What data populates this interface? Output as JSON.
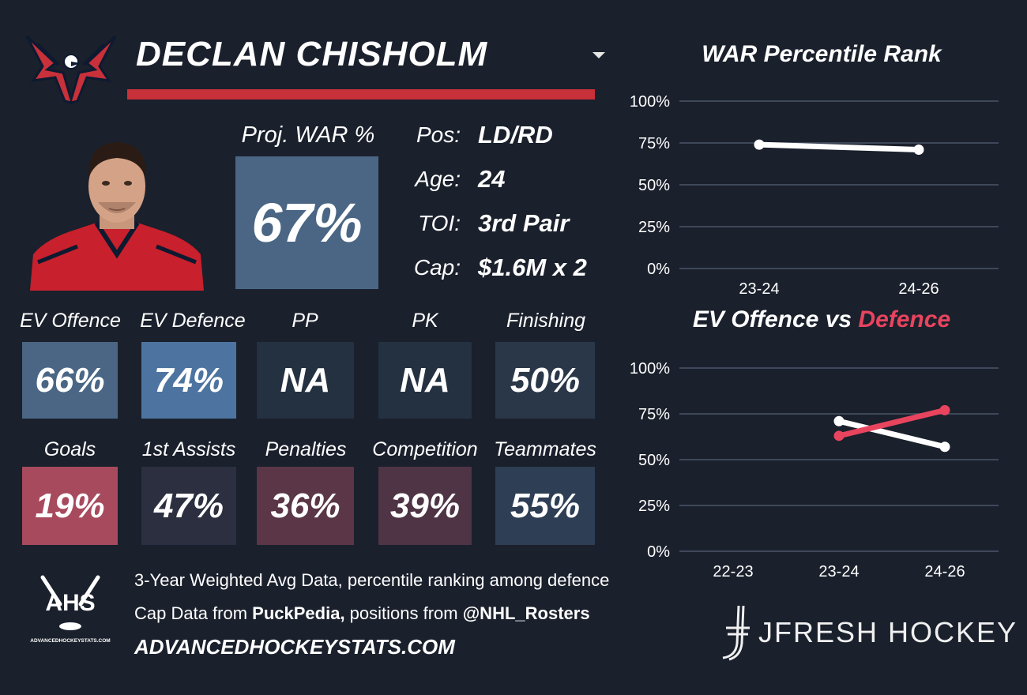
{
  "header": {
    "player_name": "DECLAN CHISHOLM"
  },
  "proj_war": {
    "label": "Proj. WAR %",
    "value": "67%",
    "color": "#4a6684"
  },
  "info": {
    "pos_label": "Pos:",
    "pos_value": "LD/RD",
    "age_label": "Age:",
    "age_value": "24",
    "toi_label": "TOI:",
    "toi_value": "3rd Pair",
    "cap_label": "Cap:",
    "cap_value": "$1.6M x 2"
  },
  "stats_row1": [
    {
      "label": "EV Offence",
      "value": "66%",
      "color": "#4a6684"
    },
    {
      "label": "EV Defence",
      "value": "74%",
      "color": "#4d74a0"
    },
    {
      "label": "PP",
      "value": "NA",
      "color": "#243140"
    },
    {
      "label": "PK",
      "value": "NA",
      "color": "#243140"
    },
    {
      "label": "Finishing",
      "value": "50%",
      "color": "#2a3748"
    }
  ],
  "stats_row2": [
    {
      "label": "Goals",
      "value": "19%",
      "color": "#a84a5e"
    },
    {
      "label": "1st Assists",
      "value": "47%",
      "color": "#2b2f40"
    },
    {
      "label": "Penalties",
      "value": "36%",
      "color": "#5a3646"
    },
    {
      "label": "Competition",
      "value": "39%",
      "color": "#4e3444"
    },
    {
      "label": "Teammates",
      "value": "55%",
      "color": "#2e3e54"
    }
  ],
  "chart_data": [
    {
      "type": "line",
      "title": "WAR Percentile Rank",
      "categories": [
        "23-24",
        "24-26"
      ],
      "yticks": [
        "100%",
        "75%",
        "50%",
        "25%",
        "0%"
      ],
      "ylim": [
        0,
        100
      ],
      "series": [
        {
          "values": [
            74,
            71
          ],
          "color": "#ffffff"
        }
      ]
    },
    {
      "type": "line",
      "title_part1": "EV Offence vs ",
      "title_part2": "Defence",
      "categories": [
        "22-23",
        "23-24",
        "24-26"
      ],
      "yticks": [
        "100%",
        "75%",
        "50%",
        "25%",
        "0%"
      ],
      "ylim": [
        0,
        100
      ],
      "series": [
        {
          "values": [
            null,
            71,
            57
          ],
          "color": "#ffffff"
        },
        {
          "values": [
            null,
            63,
            77
          ],
          "color": "#e8445e"
        }
      ]
    }
  ],
  "footer": {
    "ahs_logo_text": "AHS",
    "ahs_logo_subtext": "ADVANCEDHOCKEYSTATS.COM",
    "line1": "3-Year Weighted Avg Data, percentile ranking among defence",
    "line2_prefix": "Cap Data from ",
    "line2_bold1": "PuckPedia,",
    "line2_mid": " positions from ",
    "line2_bold2": "@NHL_Rosters",
    "url": "ADVANCEDHOCKEYSTATS.COM",
    "brand": "JFRESH HOCKEY"
  },
  "colors": {
    "background": "#1a202c",
    "accent_red": "#c8303a",
    "defence_red": "#e8445e",
    "gridline": "#4a5668"
  }
}
